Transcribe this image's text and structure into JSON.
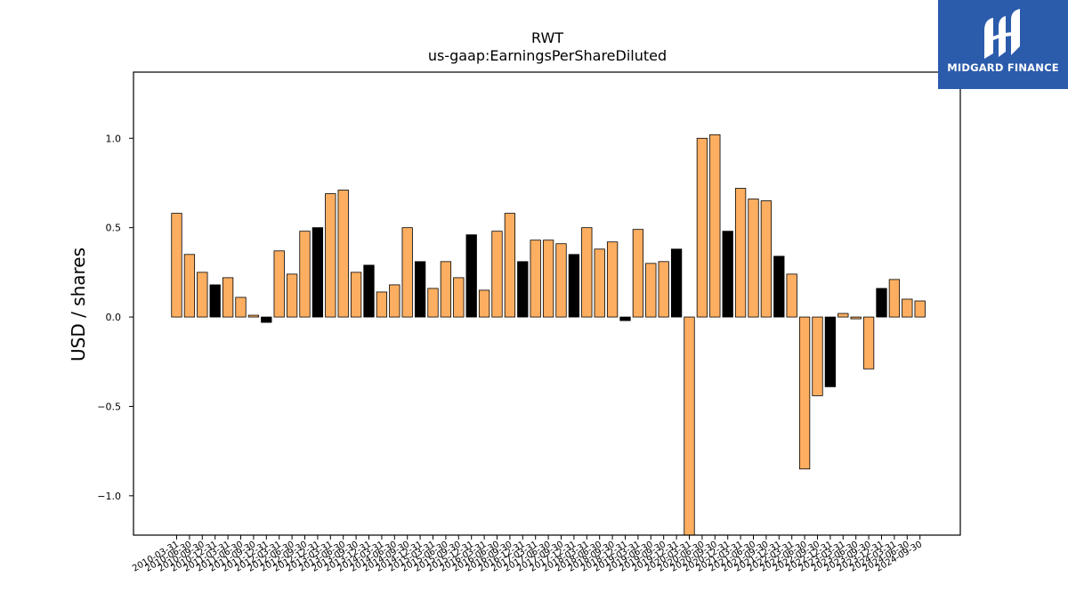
{
  "chart_data": {
    "type": "bar",
    "title": "RWT",
    "subtitle": "us-gaap:EarningsPerShareDiluted",
    "xlabel": "",
    "ylabel": "USD / shares",
    "ylim": [
      -1.22,
      1.37
    ],
    "yticks": [
      -1.0,
      -0.5,
      0.0,
      0.5,
      1.0
    ],
    "ytick_labels": [
      "−1.0",
      "−0.5",
      "0.0",
      "0.5",
      "1.0"
    ],
    "grid": false,
    "legend": "none",
    "colors": {
      "default": "#fdae61",
      "highlight": "#000000",
      "edge": "#000000"
    },
    "categories": [
      "2010-03-31",
      "2010-06-30",
      "2010-09-30",
      "2010-12-31",
      "2011-03-31",
      "2011-06-30",
      "2011-09-30",
      "2011-12-31",
      "2012-03-31",
      "2012-06-30",
      "2012-09-30",
      "2012-12-31",
      "2013-03-31",
      "2013-06-30",
      "2013-09-30",
      "2013-12-31",
      "2014-03-31",
      "2014-06-30",
      "2014-09-30",
      "2014-12-31",
      "2015-03-31",
      "2015-06-30",
      "2015-09-30",
      "2015-12-31",
      "2016-03-31",
      "2016-06-30",
      "2016-09-30",
      "2016-12-31",
      "2017-03-31",
      "2017-06-30",
      "2017-09-30",
      "2017-12-31",
      "2018-03-31",
      "2018-06-30",
      "2018-09-30",
      "2018-12-31",
      "2019-03-31",
      "2019-06-30",
      "2019-09-30",
      "2019-12-31",
      "2020-03-31",
      "2020-06-30",
      "2020-09-30",
      "2020-12-31",
      "2021-03-31",
      "2021-06-30",
      "2021-09-30",
      "2021-12-31",
      "2022-03-31",
      "2022-06-30",
      "2022-09-30",
      "2022-12-31",
      "2023-03-31",
      "2023-06-30",
      "2023-09-30",
      "2023-12-31",
      "2024-03-31",
      "2024-06-30",
      "2024-09-30"
    ],
    "values": [
      0.58,
      0.35,
      0.25,
      0.18,
      0.22,
      0.11,
      0.01,
      -0.03,
      0.37,
      0.24,
      0.48,
      0.5,
      0.69,
      0.71,
      0.25,
      0.29,
      0.14,
      0.18,
      0.5,
      0.31,
      0.16,
      0.31,
      0.22,
      0.46,
      0.15,
      0.48,
      0.58,
      0.31,
      0.43,
      0.43,
      0.41,
      0.35,
      0.5,
      0.38,
      0.42,
      -0.02,
      0.49,
      0.3,
      0.31,
      0.38,
      -1.22,
      1.0,
      1.02,
      0.48,
      0.72,
      0.66,
      0.65,
      0.34,
      0.24,
      -0.85,
      -0.44,
      -0.39,
      0.02,
      -0.01,
      -0.29,
      0.16,
      0.21,
      0.1,
      0.09
    ],
    "highlighted": [
      false,
      false,
      false,
      true,
      false,
      false,
      false,
      true,
      false,
      false,
      false,
      true,
      false,
      false,
      false,
      true,
      false,
      false,
      false,
      true,
      false,
      false,
      false,
      true,
      false,
      false,
      false,
      true,
      false,
      false,
      false,
      true,
      false,
      false,
      false,
      true,
      false,
      false,
      false,
      true,
      false,
      false,
      false,
      true,
      false,
      false,
      false,
      true,
      false,
      false,
      false,
      true,
      false,
      false,
      false,
      true,
      false,
      false,
      false
    ]
  },
  "logo": {
    "name": "MIDGARD FINANCE",
    "icon": "midgard-logo-icon"
  }
}
